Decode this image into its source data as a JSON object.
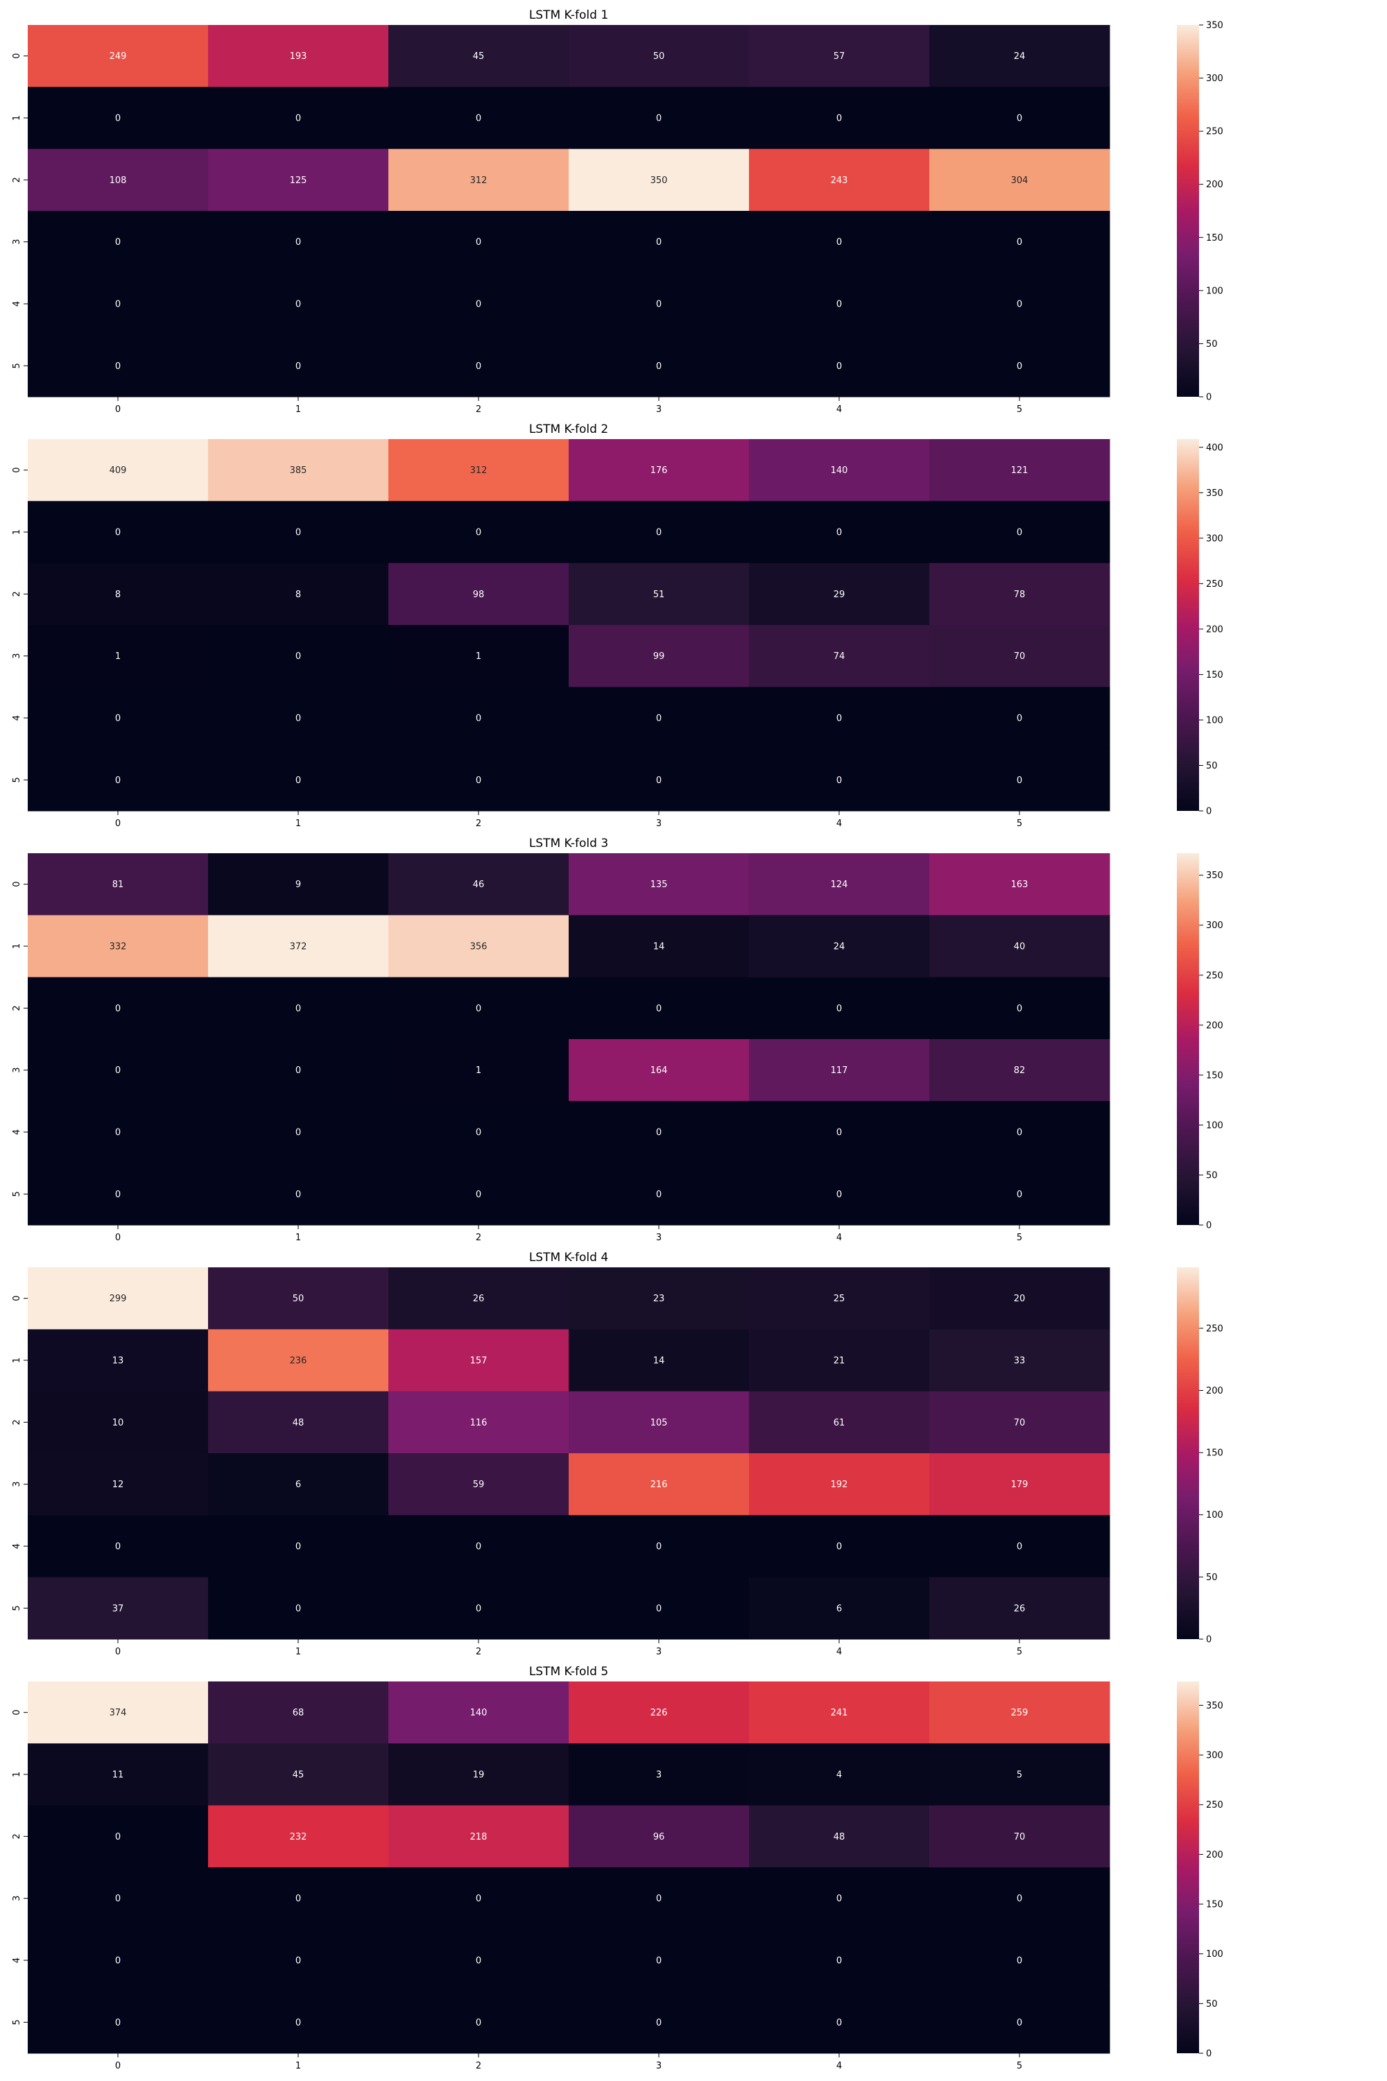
{
  "chart_data": [
    {
      "type": "heatmap",
      "title": "LSTM K-fold 1",
      "row_labels": [
        "0",
        "1",
        "2",
        "3",
        "4",
        "5"
      ],
      "col_labels": [
        "0",
        "1",
        "2",
        "3",
        "4",
        "5"
      ],
      "values": [
        [
          249,
          193,
          45,
          50,
          57,
          24
        ],
        [
          0,
          0,
          0,
          0,
          0,
          0
        ],
        [
          108,
          125,
          312,
          350,
          243,
          304
        ],
        [
          0,
          0,
          0,
          0,
          0,
          0
        ],
        [
          0,
          0,
          0,
          0,
          0,
          0
        ],
        [
          0,
          0,
          0,
          0,
          0,
          0
        ]
      ],
      "colorbar": {
        "min": 0,
        "max": 350,
        "ticks": [
          0,
          50,
          100,
          150,
          200,
          250,
          300,
          350
        ]
      },
      "colormap": "rocket",
      "annotated": true,
      "grid": false
    },
    {
      "type": "heatmap",
      "title": "LSTM K-fold 2",
      "row_labels": [
        "0",
        "1",
        "2",
        "3",
        "4",
        "5"
      ],
      "col_labels": [
        "0",
        "1",
        "2",
        "3",
        "4",
        "5"
      ],
      "values": [
        [
          409,
          385,
          312,
          176,
          140,
          121
        ],
        [
          0,
          0,
          0,
          0,
          0,
          0
        ],
        [
          8,
          8,
          98,
          51,
          29,
          78
        ],
        [
          1,
          0,
          1,
          99,
          74,
          70
        ],
        [
          0,
          0,
          0,
          0,
          0,
          0
        ],
        [
          0,
          0,
          0,
          0,
          0,
          0
        ]
      ],
      "colorbar": {
        "min": 0,
        "max": 409,
        "ticks": [
          0,
          50,
          100,
          150,
          200,
          250,
          300,
          350,
          400
        ]
      },
      "colormap": "rocket",
      "annotated": true,
      "grid": false
    },
    {
      "type": "heatmap",
      "title": "LSTM K-fold 3",
      "row_labels": [
        "0",
        "1",
        "2",
        "3",
        "4",
        "5"
      ],
      "col_labels": [
        "0",
        "1",
        "2",
        "3",
        "4",
        "5"
      ],
      "values": [
        [
          81,
          9,
          46,
          135,
          124,
          163
        ],
        [
          332,
          372,
          356,
          14,
          24,
          40
        ],
        [
          0,
          0,
          0,
          0,
          0,
          0
        ],
        [
          0,
          0,
          1,
          164,
          117,
          82
        ],
        [
          0,
          0,
          0,
          0,
          0,
          0
        ],
        [
          0,
          0,
          0,
          0,
          0,
          0
        ]
      ],
      "colorbar": {
        "min": 0,
        "max": 372,
        "ticks": [
          0,
          50,
          100,
          150,
          200,
          250,
          300,
          350
        ]
      },
      "colormap": "rocket",
      "annotated": true,
      "grid": false
    },
    {
      "type": "heatmap",
      "title": "LSTM K-fold 4",
      "row_labels": [
        "0",
        "1",
        "2",
        "3",
        "4",
        "5"
      ],
      "col_labels": [
        "0",
        "1",
        "2",
        "3",
        "4",
        "5"
      ],
      "values": [
        [
          299,
          50,
          26,
          23,
          25,
          20
        ],
        [
          13,
          236,
          157,
          14,
          21,
          33
        ],
        [
          10,
          48,
          116,
          105,
          61,
          70
        ],
        [
          12,
          6,
          59,
          216,
          192,
          179
        ],
        [
          0,
          0,
          0,
          0,
          0,
          0
        ],
        [
          37,
          0,
          0,
          0,
          6,
          26
        ]
      ],
      "colorbar": {
        "min": 0,
        "max": 299,
        "ticks": [
          0,
          50,
          100,
          150,
          200,
          250
        ]
      },
      "colormap": "rocket",
      "annotated": true,
      "grid": false
    },
    {
      "type": "heatmap",
      "title": "LSTM K-fold 5",
      "row_labels": [
        "0",
        "1",
        "2",
        "3",
        "4",
        "5"
      ],
      "col_labels": [
        "0",
        "1",
        "2",
        "3",
        "4",
        "5"
      ],
      "values": [
        [
          374,
          68,
          140,
          226,
          241,
          259
        ],
        [
          11,
          45,
          19,
          3,
          4,
          5
        ],
        [
          0,
          232,
          218,
          96,
          48,
          70
        ],
        [
          0,
          0,
          0,
          0,
          0,
          0
        ],
        [
          0,
          0,
          0,
          0,
          0,
          0
        ],
        [
          0,
          0,
          0,
          0,
          0,
          0
        ]
      ],
      "colorbar": {
        "min": 0,
        "max": 374,
        "ticks": [
          0,
          50,
          100,
          150,
          200,
          250,
          300,
          350
        ]
      },
      "colormap": "rocket",
      "annotated": true,
      "grid": false
    }
  ]
}
